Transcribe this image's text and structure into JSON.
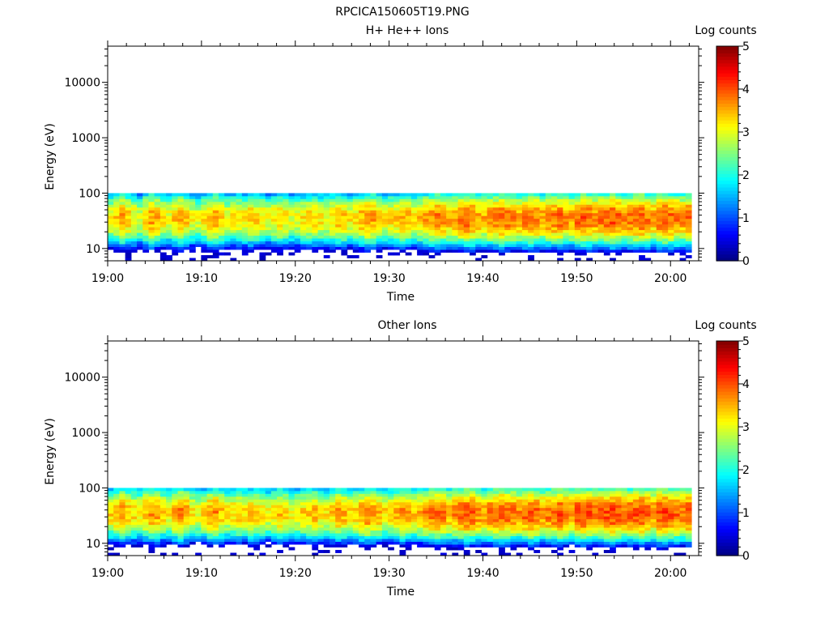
{
  "figure_title": "RPCICA150605T19.PNG",
  "chart_data": [
    {
      "type": "heatmap",
      "title": "H+ He++ Ions",
      "xlabel": "Time",
      "ylabel": "Energy (eV)",
      "y_scale": "log",
      "ylim": [
        6,
        45000
      ],
      "x_range": [
        "19:00",
        "20:03"
      ],
      "x_ticks": [
        "19:00",
        "19:10",
        "19:20",
        "19:30",
        "19:40",
        "19:50",
        "20:00"
      ],
      "y_ticks": [
        "10",
        "100",
        "1000",
        "10000"
      ],
      "colorbar": {
        "label": "Log counts",
        "range": [
          0,
          5
        ],
        "ticks": [
          "0",
          "1",
          "2",
          "3",
          "4",
          "5"
        ],
        "colormap": "jet"
      },
      "peak_log_counts": [
        3.2,
        3.4,
        3.6,
        3.4,
        3.2,
        3.0,
        3.4,
        3.6,
        3.5,
        3.2,
        3.1,
        3.4,
        3.6,
        3.4,
        3.1,
        3.0,
        3.2,
        3.5,
        3.6,
        3.3,
        3.1,
        3.2,
        3.3,
        3.2,
        3.4,
        3.3,
        3.2,
        3.0,
        3.2,
        3.4,
        3.2,
        3.0,
        3.1,
        3.2,
        3.3,
        3.4,
        3.2,
        3.1,
        3.3,
        3.5,
        3.4,
        3.2,
        3.3,
        3.5,
        3.7,
        3.6,
        3.4,
        3.2,
        3.3,
        3.4,
        3.6,
        3.5,
        3.3,
        3.4,
        3.6,
        3.7,
        3.8,
        3.7,
        3.5,
        3.6,
        3.8,
        3.9,
        3.8,
        3.6,
        3.5,
        3.7,
        3.8,
        3.9,
        3.8,
        3.7,
        3.6,
        3.8,
        3.9,
        3.8,
        3.6,
        3.7,
        3.8,
        3.9,
        3.7,
        3.6,
        3.9,
        4.0,
        3.9,
        3.7,
        3.8,
        3.9,
        4.0,
        3.9,
        3.7,
        3.8,
        3.9,
        4.0,
        3.8,
        3.6,
        3.9,
        4.0,
        3.9,
        3.8,
        3.7,
        3.9
      ]
    },
    {
      "type": "heatmap",
      "title": "Other Ions",
      "xlabel": "Time",
      "ylabel": "Energy (eV)",
      "y_scale": "log",
      "ylim": [
        6,
        45000
      ],
      "x_range": [
        "19:00",
        "20:03"
      ],
      "x_ticks": [
        "19:00",
        "19:10",
        "19:20",
        "19:30",
        "19:40",
        "19:50",
        "20:00"
      ],
      "y_ticks": [
        "10",
        "100",
        "1000",
        "10000"
      ],
      "colorbar": {
        "label": "Log counts",
        "range": [
          0,
          5
        ],
        "ticks": [
          "0",
          "1",
          "2",
          "3",
          "4",
          "5"
        ],
        "colormap": "jet"
      },
      "peak_log_counts": [
        3.3,
        3.5,
        3.7,
        3.5,
        3.3,
        3.1,
        3.5,
        3.7,
        3.6,
        3.3,
        3.2,
        3.5,
        3.8,
        3.6,
        3.2,
        3.1,
        3.3,
        3.6,
        3.7,
        3.4,
        3.2,
        3.3,
        3.4,
        3.3,
        3.5,
        3.4,
        3.3,
        3.1,
        3.3,
        3.5,
        3.3,
        3.1,
        3.2,
        3.3,
        3.4,
        3.5,
        3.3,
        3.2,
        3.4,
        3.6,
        3.5,
        3.3,
        3.4,
        3.6,
        3.8,
        3.7,
        3.5,
        3.3,
        3.4,
        3.5,
        3.7,
        3.6,
        3.4,
        3.5,
        3.7,
        3.8,
        3.9,
        3.8,
        3.6,
        3.7,
        3.9,
        4.0,
        3.9,
        3.7,
        3.6,
        3.8,
        3.9,
        4.0,
        3.9,
        3.8,
        3.7,
        3.9,
        4.0,
        3.9,
        3.7,
        3.8,
        3.9,
        4.0,
        3.8,
        3.7,
        4.0,
        4.1,
        4.0,
        3.8,
        3.9,
        4.0,
        4.1,
        4.0,
        3.8,
        3.9,
        4.0,
        4.1,
        3.9,
        3.7,
        4.0,
        4.1,
        4.0,
        3.9,
        3.8,
        4.0
      ]
    }
  ]
}
